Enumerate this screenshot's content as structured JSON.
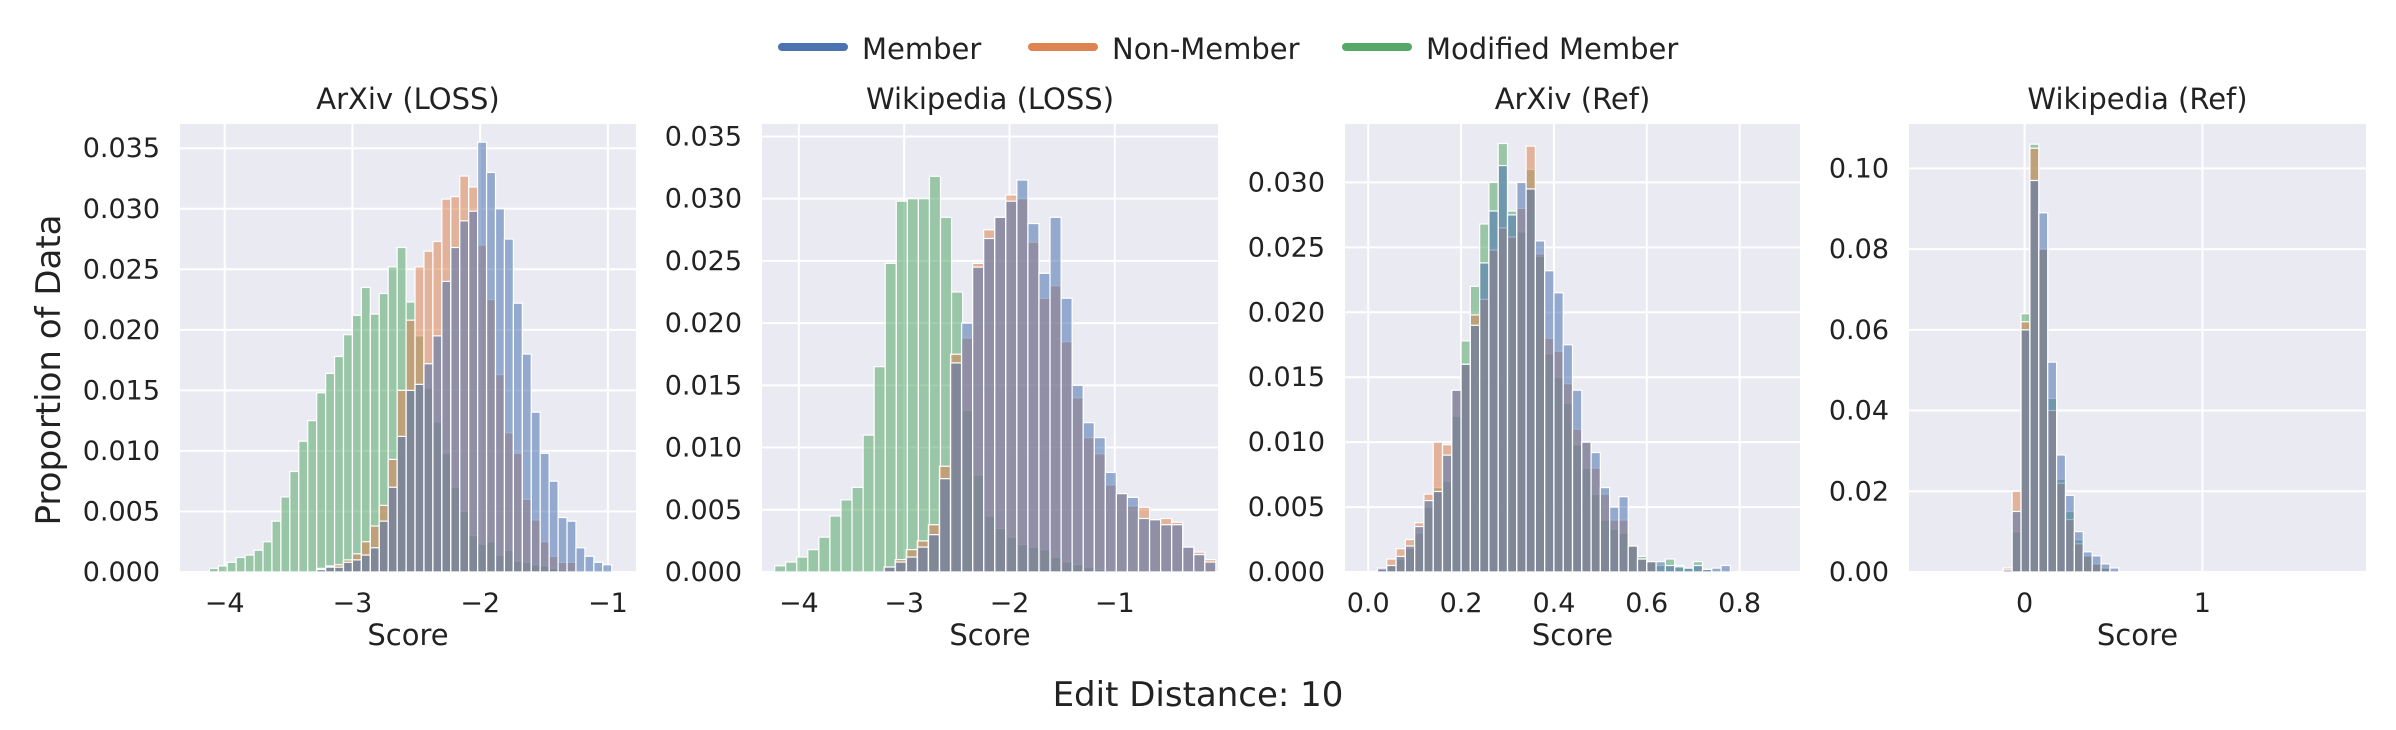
{
  "figure": {
    "ylabel": "Proportion of Data",
    "suptitle": "Edit Distance: 10"
  },
  "legend": {
    "placement": "top-center",
    "items": [
      {
        "label": "Member",
        "color": "#4C72B0"
      },
      {
        "label": "Non-Member",
        "color": "#DD8452"
      },
      {
        "label": "Modified Member",
        "color": "#55A868"
      }
    ]
  },
  "chart_data": [
    {
      "type": "histogram",
      "title": "ArXiv (LOSS)",
      "xlabel": "Score",
      "ylabel": "Proportion of Data",
      "xlim": [
        -4.35,
        -0.78
      ],
      "ylim": [
        0,
        0.037
      ],
      "xticks": [
        -4,
        -3,
        -2,
        -1
      ],
      "xtick_labels": [
        "−4",
        "−3",
        "−2",
        "−1"
      ],
      "yticks": [
        0,
        0.005,
        0.01,
        0.015,
        0.02,
        0.025,
        0.03,
        0.035
      ],
      "ytick_labels": [
        "0.000",
        "0.005",
        "0.010",
        "0.015",
        "0.020",
        "0.025",
        "0.030",
        "0.035"
      ],
      "grid": true,
      "series": [
        {
          "name": "Modified Member",
          "color": "#55A868",
          "bin_start": -4.12,
          "bin_width": 0.07,
          "values": [
            0.0003,
            0.0005,
            0.0008,
            0.0012,
            0.0014,
            0.0018,
            0.0025,
            0.0042,
            0.0062,
            0.0083,
            0.0108,
            0.0125,
            0.0148,
            0.0164,
            0.0178,
            0.0196,
            0.0212,
            0.0235,
            0.0213,
            0.023,
            0.0252,
            0.0268,
            0.0223,
            0.0195,
            0.0152,
            0.0124,
            0.0098,
            0.007,
            0.005,
            0.003,
            0.0023,
            0.0025,
            0.0014,
            0.0018,
            0.0009,
            0.0008,
            0.0006,
            0.0005,
            0.0003,
            0.0002,
            0.0001
          ]
        },
        {
          "name": "Non-Member",
          "color": "#DD8452",
          "bin_start": -3.28,
          "bin_width": 0.07,
          "values": [
            0.0003,
            0.0005,
            0.0006,
            0.001,
            0.0015,
            0.0025,
            0.0038,
            0.0055,
            0.0093,
            0.015,
            0.0208,
            0.0252,
            0.0265,
            0.0273,
            0.0308,
            0.031,
            0.0327,
            0.0318,
            0.027,
            0.0225,
            0.0163,
            0.0115,
            0.0098,
            0.006,
            0.0043,
            0.0025,
            0.0013,
            0.0008,
            0.0008
          ]
        },
        {
          "name": "Member",
          "color": "#4C72B0",
          "bin_start": -3.28,
          "bin_width": 0.07,
          "values": [
            0.0002,
            0.0004,
            0.0004,
            0.0008,
            0.001,
            0.0014,
            0.002,
            0.0042,
            0.007,
            0.0112,
            0.015,
            0.0155,
            0.0172,
            0.0195,
            0.024,
            0.0268,
            0.029,
            0.0298,
            0.0355,
            0.033,
            0.03,
            0.0275,
            0.0222,
            0.018,
            0.0132,
            0.0098,
            0.0075,
            0.0045,
            0.0042,
            0.002,
            0.0013,
            0.0008,
            0.0006
          ]
        }
      ]
    },
    {
      "type": "histogram",
      "title": "Wikipedia (LOSS)",
      "xlabel": "Score",
      "ylabel": "",
      "xlim": [
        -4.35,
        -0.02
      ],
      "ylim": [
        0,
        0.036
      ],
      "xticks": [
        -4,
        -3,
        -2,
        -1
      ],
      "xtick_labels": [
        "−4",
        "−3",
        "−2",
        "−1"
      ],
      "yticks": [
        0,
        0.005,
        0.01,
        0.015,
        0.02,
        0.025,
        0.03,
        0.035
      ],
      "ytick_labels": [
        "0.000",
        "0.005",
        "0.010",
        "0.015",
        "0.020",
        "0.025",
        "0.030",
        "0.035"
      ],
      "grid": true,
      "series": [
        {
          "name": "Modified Member",
          "color": "#55A868",
          "bin_start": -4.23,
          "bin_width": 0.105,
          "values": [
            0.0005,
            0.0008,
            0.0012,
            0.0018,
            0.0028,
            0.0045,
            0.0058,
            0.0068,
            0.011,
            0.0165,
            0.0248,
            0.0298,
            0.03,
            0.03,
            0.0318,
            0.0285,
            0.0225,
            0.013,
            0.0078,
            0.0045,
            0.0035,
            0.0028,
            0.0022,
            0.002,
            0.0018,
            0.0012,
            0.0008,
            0.0006,
            0.0004,
            0.0002
          ]
        },
        {
          "name": "Non-Member",
          "color": "#DD8452",
          "bin_start": -3.19,
          "bin_width": 0.105,
          "values": [
            0.0004,
            0.001,
            0.0018,
            0.0025,
            0.0038,
            0.0085,
            0.0175,
            0.0188,
            0.0248,
            0.0275,
            0.0285,
            0.0303,
            0.03,
            0.0265,
            0.022,
            0.023,
            0.0185,
            0.014,
            0.0108,
            0.0095,
            0.007,
            0.0063,
            0.0053,
            0.0052,
            0.0042,
            0.0043,
            0.004,
            0.002,
            0.0016,
            0.001
          ]
        },
        {
          "name": "Member",
          "color": "#4C72B0",
          "bin_start": -3.19,
          "bin_width": 0.105,
          "values": [
            0.0004,
            0.0008,
            0.0012,
            0.002,
            0.003,
            0.0075,
            0.0168,
            0.02,
            0.0245,
            0.0268,
            0.0285,
            0.0298,
            0.0315,
            0.028,
            0.024,
            0.0285,
            0.022,
            0.015,
            0.012,
            0.0108,
            0.008,
            0.0063,
            0.006,
            0.0043,
            0.0042,
            0.0038,
            0.0038,
            0.002,
            0.0014,
            0.0008
          ]
        }
      ]
    },
    {
      "type": "histogram",
      "title": "ArXiv (Ref)",
      "xlabel": "Score",
      "ylabel": "",
      "xlim": [
        -0.05,
        0.93
      ],
      "ylim": [
        0,
        0.0345
      ],
      "xticks": [
        0,
        0.2,
        0.4,
        0.6,
        0.8
      ],
      "xtick_labels": [
        "0.0",
        "0.2",
        "0.4",
        "0.6",
        "0.8"
      ],
      "yticks": [
        0,
        0.005,
        0.01,
        0.015,
        0.02,
        0.025,
        0.03
      ],
      "ytick_labels": [
        "0.000",
        "0.005",
        "0.010",
        "0.015",
        "0.020",
        "0.025",
        "0.030"
      ],
      "grid": true,
      "series": [
        {
          "name": "Modified Member",
          "color": "#55A868",
          "bin_start": 0.02,
          "bin_width": 0.02,
          "values": [
            0.0002,
            0.0005,
            0.001,
            0.0018,
            0.003,
            0.005,
            0.0065,
            0.007,
            0.012,
            0.0178,
            0.022,
            0.0268,
            0.03,
            0.033,
            0.0278,
            0.0262,
            0.031,
            0.0243,
            0.0168,
            0.015,
            0.013,
            0.0098,
            0.008,
            0.006,
            0.004,
            0.0033,
            0.003,
            0.002,
            0.0012,
            0.0008,
            0.0005,
            0.001,
            0.0005,
            0.0003,
            0.0008,
            0.0002
          ]
        },
        {
          "name": "Non-Member",
          "color": "#DD8452",
          "bin_start": 0.02,
          "bin_width": 0.02,
          "values": [
            0.0002,
            0.001,
            0.0018,
            0.0025,
            0.0038,
            0.006,
            0.01,
            0.0098,
            0.014,
            0.016,
            0.0198,
            0.021,
            0.0248,
            0.0265,
            0.0258,
            0.028,
            0.0328,
            0.0245,
            0.018,
            0.017,
            0.0145,
            0.011,
            0.01,
            0.008,
            0.006,
            0.004,
            0.004,
            0.002,
            0.001,
            0.0008
          ]
        },
        {
          "name": "Member",
          "color": "#4C72B0",
          "bin_start": 0.02,
          "bin_width": 0.02,
          "values": [
            0.0003,
            0.0005,
            0.0012,
            0.002,
            0.0035,
            0.0055,
            0.0062,
            0.009,
            0.014,
            0.016,
            0.019,
            0.0238,
            0.0278,
            0.0313,
            0.0275,
            0.03,
            0.0295,
            0.0255,
            0.0232,
            0.0215,
            0.0175,
            0.014,
            0.01,
            0.0092,
            0.0065,
            0.005,
            0.0058,
            0.002,
            0.001,
            0.0008,
            0.0008,
            0.0005,
            0.0004,
            0.0003,
            0.0005,
            0.0002,
            0.0003,
            0.0005
          ]
        }
      ]
    },
    {
      "type": "histogram",
      "title": "Wikipedia (Ref)",
      "xlabel": "Score",
      "ylabel": "",
      "xlim": [
        -0.65,
        1.92
      ],
      "ylim": [
        0,
        0.111
      ],
      "xticks": [
        0,
        1
      ],
      "xtick_labels": [
        "0",
        "1"
      ],
      "yticks": [
        0,
        0.02,
        0.04,
        0.06,
        0.08,
        0.1
      ],
      "ytick_labels": [
        "0.00",
        "0.02",
        "0.04",
        "0.06",
        "0.08",
        "0.10"
      ],
      "grid": true,
      "series": [
        {
          "name": "Modified Member",
          "color": "#55A868",
          "bin_start": -0.12,
          "bin_width": 0.05,
          "values": [
            0.0005,
            0.01,
            0.064,
            0.106,
            0.08,
            0.043,
            0.023,
            0.015,
            0.008,
            0.004,
            0.002,
            0.001
          ]
        },
        {
          "name": "Non-Member",
          "color": "#DD8452",
          "bin_start": -0.12,
          "bin_width": 0.05,
          "values": [
            0.001,
            0.02,
            0.062,
            0.105,
            0.08,
            0.04,
            0.022,
            0.013,
            0.007,
            0.004,
            0.002,
            0.001
          ]
        },
        {
          "name": "Member",
          "color": "#4C72B0",
          "bin_start": -0.12,
          "bin_width": 0.05,
          "values": [
            0.0005,
            0.015,
            0.06,
            0.097,
            0.089,
            0.052,
            0.029,
            0.019,
            0.01,
            0.005,
            0.004,
            0.002,
            0.001
          ]
        }
      ]
    }
  ]
}
